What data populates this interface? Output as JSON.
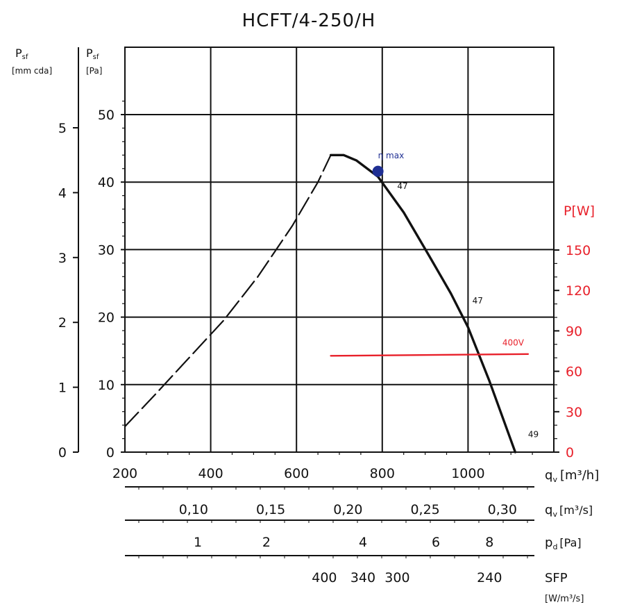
{
  "chart_data": {
    "type": "line",
    "title": "HCFT/4-250/H",
    "x_axis": {
      "label": "q",
      "label_sub": "v",
      "unit": "[m³/h]",
      "ticks": [
        "200",
        "400",
        "600",
        "800",
        "1000"
      ],
      "range": [
        200,
        1200
      ]
    },
    "y_axis_pa": {
      "label": "P",
      "label_sub": "sf",
      "unit": "[Pa]",
      "ticks": [
        "0",
        "10",
        "20",
        "30",
        "40",
        "50"
      ],
      "range": [
        0,
        50
      ]
    },
    "y_axis_mmcda": {
      "label": "P",
      "label_sub": "sf",
      "unit": "[mm cda]",
      "ticks": [
        "0",
        "1",
        "2",
        "3",
        "4",
        "5"
      ],
      "range": [
        0,
        5
      ]
    },
    "y_axis_power": {
      "label": "P[W]",
      "ticks": [
        "0",
        "30",
        "60",
        "90",
        "120",
        "150"
      ],
      "range": [
        0,
        150
      ],
      "color": "#e8202a"
    },
    "secondary_scales": [
      {
        "label": "q",
        "label_sub": "v",
        "unit": "[m³/s]",
        "ticks": [
          {
            "label": "0,10",
            "x": 360
          },
          {
            "label": "0,15",
            "x": 540
          },
          {
            "label": "0,20",
            "x": 720
          },
          {
            "label": "0,25",
            "x": 900
          },
          {
            "label": "0,30",
            "x": 1080
          }
        ]
      },
      {
        "label": "p",
        "label_sub": "d",
        "unit": "[Pa]",
        "ticks": [
          {
            "label": "1",
            "x": 370
          },
          {
            "label": "2",
            "x": 530
          },
          {
            "label": "4",
            "x": 755
          },
          {
            "label": "6",
            "x": 925
          },
          {
            "label": "8",
            "x": 1050
          }
        ]
      },
      {
        "label": "SFP",
        "unit": "[W/m³/s]",
        "ticks": [
          {
            "label": "400",
            "x": 665
          },
          {
            "label": "340",
            "x": 755
          },
          {
            "label": "300",
            "x": 835
          },
          {
            "label": "240",
            "x": 1050
          }
        ]
      }
    ],
    "series": [
      {
        "name": "pressure",
        "style": "dashed",
        "x": [
          200,
          270,
          350,
          430,
          510,
          590,
          650,
          680
        ],
        "y": [
          3.8,
          8.5,
          14.0,
          19.5,
          26.0,
          33.5,
          40.0,
          44.0
        ]
      },
      {
        "name": "pressure",
        "style": "solid",
        "x": [
          680,
          710,
          740,
          790,
          850,
          910,
          960,
          1000,
          1050,
          1110
        ],
        "y": [
          44.0,
          44.0,
          43.2,
          40.8,
          35.5,
          29.0,
          23.5,
          18.5,
          10.5,
          0
        ]
      },
      {
        "name": "400V",
        "style": "solid",
        "color": "#e8202a",
        "axis": "power",
        "x": [
          680,
          1140
        ],
        "y": [
          71.5,
          72.8
        ]
      }
    ],
    "annotations": [
      {
        "text": "η max",
        "x": 790,
        "y": 43.5,
        "marker": {
          "x": 790,
          "y": 41.6
        },
        "color": "#1f2f93"
      },
      {
        "text": "47",
        "x": 835,
        "y": 39.0
      },
      {
        "text": "47",
        "x": 1010,
        "y": 22.0
      },
      {
        "text": "400V",
        "x": 1080,
        "y": 15.8,
        "color": "#e8202a"
      },
      {
        "text": "49",
        "x": 1140,
        "y": 2.2
      }
    ],
    "grid": true
  }
}
